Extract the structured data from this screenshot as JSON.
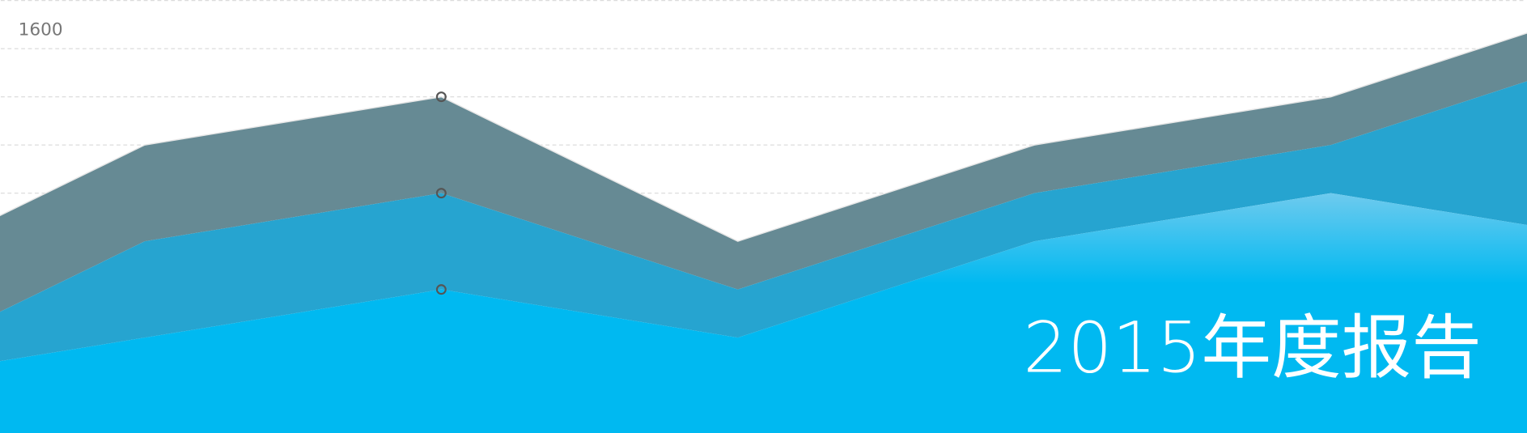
{
  "chart_data": {
    "type": "stacked-area",
    "title": "2015年度报告",
    "categories": [
      null,
      null,
      null,
      null,
      null,
      null,
      null
    ],
    "series": [
      {
        "color": "#00b9f1",
        "values": [
          200,
          400,
          600,
          400,
          800,
          1000,
          800
        ]
      },
      {
        "color": "#26a4d0",
        "values": [
          0,
          400,
          400,
          200,
          200,
          200,
          800
        ]
      },
      {
        "color": "#668a94",
        "values": [
          400,
          400,
          400,
          200,
          200,
          200,
          200
        ]
      }
    ],
    "ylim": [
      0,
      1800
    ],
    "yticks": [
      1600
    ],
    "ygrid": [
      200,
      400,
      600,
      800,
      1000,
      1200,
      1400,
      1600,
      1800
    ],
    "highlight": 2
  }
}
